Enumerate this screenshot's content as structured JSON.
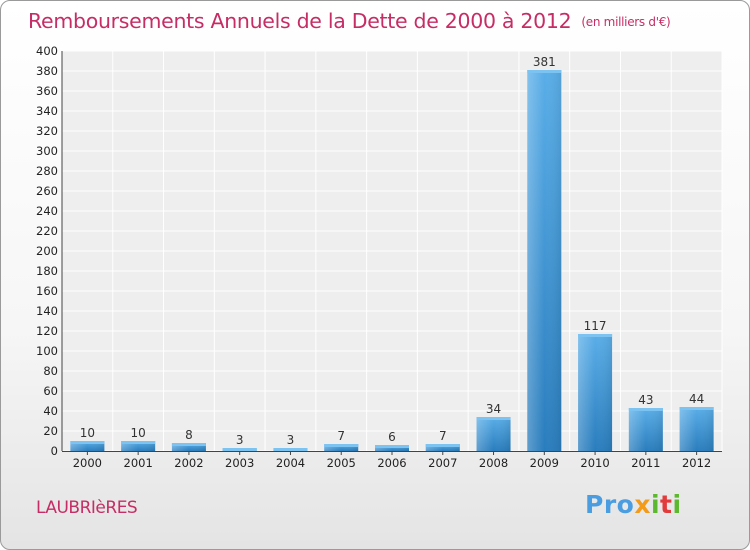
{
  "header": {
    "title": "Remboursements Annuels de la Dette de 2000 à 2012",
    "unit": "(en milliers d'€)"
  },
  "footer": {
    "commune": "LAUBRIèRES",
    "logo": "Proxiti"
  },
  "colors": {
    "title": "#c62d64",
    "bar_top": "#5aaee8",
    "bar_bottom": "#2a7dbd"
  },
  "chart_data": {
    "type": "bar",
    "title": "Remboursements Annuels de la Dette de 2000 à 2012",
    "subtitle": "(en milliers d'€)",
    "categories": [
      "2000",
      "2001",
      "2002",
      "2003",
      "2004",
      "2005",
      "2006",
      "2007",
      "2008",
      "2009",
      "2010",
      "2011",
      "2012"
    ],
    "values": [
      10,
      10,
      8,
      3,
      3,
      7,
      6,
      7,
      34,
      381,
      117,
      43,
      44
    ],
    "ylim": [
      0,
      400
    ],
    "yticks": [
      0,
      20,
      40,
      60,
      80,
      100,
      120,
      140,
      160,
      180,
      200,
      220,
      240,
      260,
      280,
      300,
      320,
      340,
      360,
      380,
      400
    ],
    "grid": true,
    "legend": "none"
  }
}
